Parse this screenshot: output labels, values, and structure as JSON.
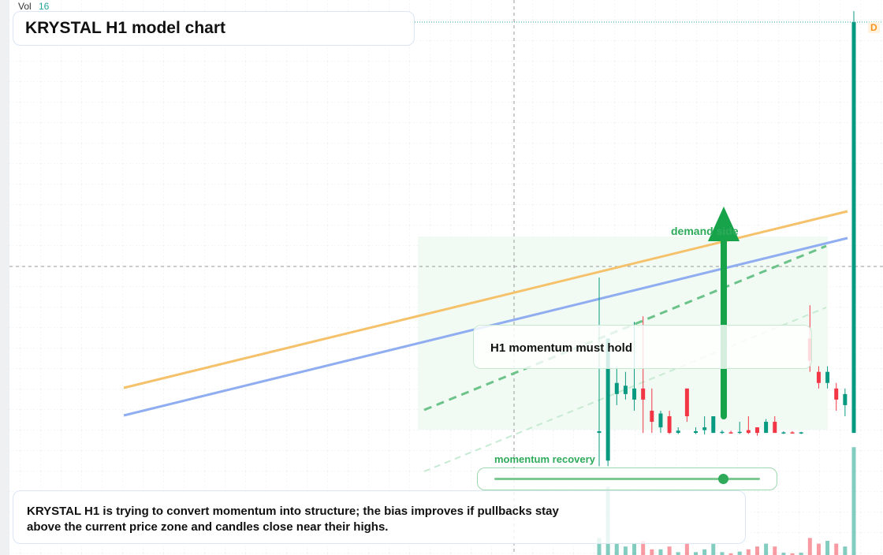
{
  "header": {
    "vol_label": "Vol",
    "vol_value": 16,
    "title": "KRYSTAL H1 model chart",
    "price_tag": "D"
  },
  "annotations": {
    "demand": "demand side",
    "hold": "H1 momentum must hold",
    "momentum": "momentum recovery"
  },
  "note": "KRYSTAL H1 is trying to convert momentum into structure; the bias improves if pullbacks stay above the current price zone and candles close near their highs.",
  "chart_data": {
    "type": "candlestick",
    "up_color": "#089981",
    "down_color": "#f23645",
    "ylim": [
      0,
      100
    ],
    "vlim": [
      0,
      20
    ],
    "candles": [
      {
        "o": 22,
        "h": 50,
        "l": 16,
        "c": 22.3
      },
      {
        "o": 17,
        "h": 39,
        "l": 16,
        "c": 39
      },
      {
        "o": 29,
        "h": 34,
        "l": 27,
        "c": 31
      },
      {
        "o": 29,
        "h": 33,
        "l": 28,
        "c": 30.5
      },
      {
        "o": 28,
        "h": 42,
        "l": 26,
        "c": 30
      },
      {
        "o": 30,
        "h": 43,
        "l": 22,
        "c": 28
      },
      {
        "o": 26,
        "h": 30,
        "l": 22,
        "c": 24
      },
      {
        "o": 23,
        "h": 26,
        "l": 22,
        "c": 25.5
      },
      {
        "o": 25,
        "h": 26,
        "l": 21.8,
        "c": 22
      },
      {
        "o": 22,
        "h": 23,
        "l": 21.8,
        "c": 22.4
      },
      {
        "o": 30,
        "h": 30,
        "l": 24,
        "c": 25
      },
      {
        "o": 22,
        "h": 23,
        "l": 21.8,
        "c": 22.3
      },
      {
        "o": 22.5,
        "h": 25,
        "l": 21.7,
        "c": 23
      },
      {
        "o": 22,
        "h": 25,
        "l": 22,
        "c": 25
      },
      {
        "o": 22,
        "h": 22.5,
        "l": 21.8,
        "c": 22.2
      },
      {
        "o": 22.1,
        "h": 22.4,
        "l": 21.9,
        "c": 22
      },
      {
        "o": 22,
        "h": 24,
        "l": 21.8,
        "c": 22.2
      },
      {
        "o": 22.5,
        "h": 25,
        "l": 21.8,
        "c": 22
      },
      {
        "o": 23,
        "h": 23,
        "l": 21.5,
        "c": 22
      },
      {
        "o": 22,
        "h": 24.5,
        "l": 22,
        "c": 24
      },
      {
        "o": 24,
        "h": 25,
        "l": 22,
        "c": 22
      },
      {
        "o": 22,
        "h": 22.3,
        "l": 21.8,
        "c": 22.1
      },
      {
        "o": 22.1,
        "h": 22.3,
        "l": 21.9,
        "c": 22
      },
      {
        "o": 22,
        "h": 22.2,
        "l": 21.8,
        "c": 22.1
      },
      {
        "o": 39,
        "h": 45,
        "l": 33,
        "c": 35
      },
      {
        "o": 33,
        "h": 34,
        "l": 30,
        "c": 31
      },
      {
        "o": 31,
        "h": 34,
        "l": 30,
        "c": 33
      },
      {
        "o": 30,
        "h": 31,
        "l": 26,
        "c": 28
      },
      {
        "o": 27,
        "h": 30,
        "l": 25,
        "c": 29
      },
      {
        "o": 22,
        "h": 98,
        "l": 22,
        "c": 96
      }
    ],
    "volume": [
      3,
      12,
      2,
      1.5,
      2,
      2.5,
      1,
      1,
      1.5,
      0.5,
      2,
      0.5,
      1,
      2,
      0.5,
      0.3,
      0.6,
      1,
      1.5,
      2,
      1.5,
      0.4,
      0.3,
      0.4,
      3,
      2,
      2.5,
      2,
      1.5,
      19
    ]
  }
}
